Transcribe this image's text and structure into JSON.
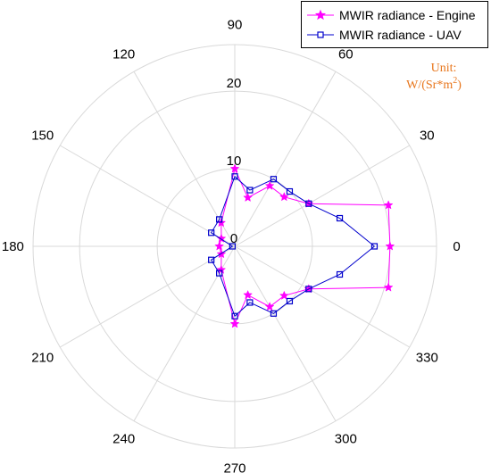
{
  "chart_data": {
    "type": "polar-line",
    "theta_ticks": [
      "0",
      "30",
      "60",
      "90",
      "120",
      "150",
      "180",
      "210",
      "240",
      "270",
      "300",
      "330"
    ],
    "r_ticks": [
      "0",
      "10",
      "20"
    ],
    "rlim": [
      0,
      26
    ],
    "unit_label": "Unit:",
    "unit_value": "W/(Sr*m",
    "unit_sup": "2",
    "unit_close": ")",
    "legend_placement": "top-right",
    "series": [
      {
        "name": "MWIR radiance - Engine",
        "color": "#ff00ff",
        "marker": "star",
        "theta": [
          0,
          15,
          30,
          45,
          60,
          75,
          90,
          120,
          150,
          180,
          210,
          240,
          270,
          285,
          300,
          315,
          330,
          345
        ],
        "r": [
          20,
          20.5,
          11,
          9,
          9,
          6.5,
          10,
          3.5,
          2,
          2,
          2,
          3.5,
          10,
          6.5,
          9,
          9,
          11,
          20.5
        ]
      },
      {
        "name": "MWIR radiance - UAV",
        "color": "#0000cc",
        "marker": "square",
        "theta": [
          0,
          15,
          30,
          45,
          60,
          75,
          90,
          120,
          150,
          180,
          210,
          240,
          270,
          285,
          300,
          315,
          330,
          345
        ],
        "r": [
          18,
          14,
          11,
          10,
          10,
          7.5,
          9,
          4,
          3.5,
          0.3,
          3.5,
          4,
          9,
          7.5,
          10,
          10,
          11,
          14
        ]
      }
    ]
  }
}
